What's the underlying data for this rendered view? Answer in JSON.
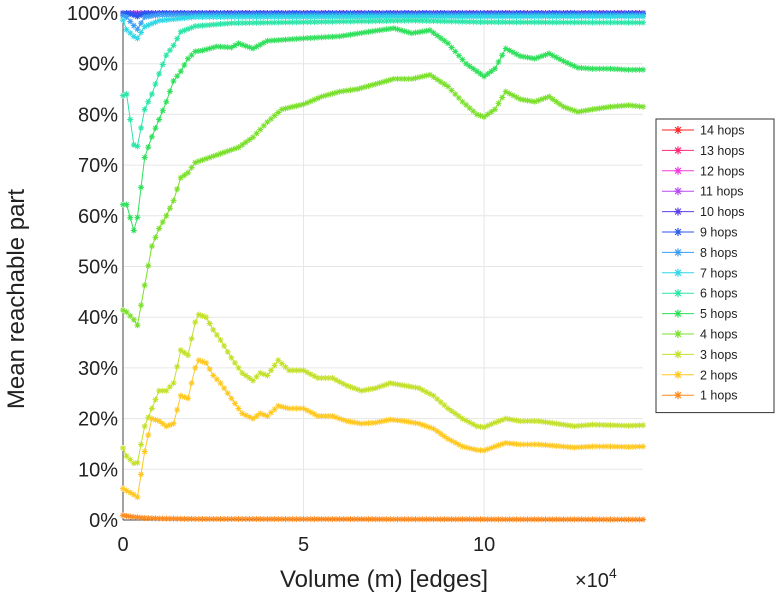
{
  "chart_data": {
    "type": "line",
    "title": "",
    "xlabel": "Volume (m) [edges]",
    "ylabel": "Mean reachable part",
    "x_multiplier_label": "×10",
    "x_multiplier_exponent": "4",
    "xlim": [
      0,
      144000
    ],
    "ylim": [
      0,
      100
    ],
    "x_ticks": [
      0,
      50000,
      100000
    ],
    "x_tick_labels": [
      "0",
      "5",
      "10"
    ],
    "y_ticks": [
      0,
      10,
      20,
      30,
      40,
      50,
      60,
      70,
      80,
      90,
      100
    ],
    "y_tick_labels": [
      "0%",
      "10%",
      "20%",
      "30%",
      "40%",
      "50%",
      "60%",
      "70%",
      "80%",
      "90%",
      "100%"
    ],
    "grid": true,
    "legend_position": "right",
    "marker": "asterisk",
    "series": [
      {
        "name": "14 hops",
        "color": "#ff2222",
        "points": [
          [
            0,
            100
          ],
          [
            1000,
            100
          ],
          [
            4000,
            100
          ],
          [
            10000,
            100
          ],
          [
            144000,
            100
          ]
        ]
      },
      {
        "name": "13 hops",
        "color": "#ff2a7a",
        "points": [
          [
            0,
            100
          ],
          [
            1000,
            100
          ],
          [
            4000,
            100
          ],
          [
            10000,
            100
          ],
          [
            144000,
            100
          ]
        ]
      },
      {
        "name": "12 hops",
        "color": "#f23ad9",
        "points": [
          [
            0,
            100
          ],
          [
            1000,
            100
          ],
          [
            4000,
            100
          ],
          [
            10000,
            100
          ],
          [
            144000,
            100
          ]
        ]
      },
      {
        "name": "11 hops",
        "color": "#b54cf2",
        "points": [
          [
            0,
            100
          ],
          [
            1000,
            100
          ],
          [
            4000,
            100
          ],
          [
            10000,
            100
          ],
          [
            144000,
            100
          ]
        ]
      },
      {
        "name": "10 hops",
        "color": "#5a40e8",
        "points": [
          [
            0,
            100
          ],
          [
            1000,
            100
          ],
          [
            4000,
            99.8
          ],
          [
            6000,
            100
          ],
          [
            144000,
            100
          ]
        ]
      },
      {
        "name": "9 hops",
        "color": "#2a56f0",
        "points": [
          [
            0,
            100
          ],
          [
            1000,
            100
          ],
          [
            4000,
            99.3
          ],
          [
            6000,
            99.9
          ],
          [
            10000,
            100
          ],
          [
            144000,
            99.9
          ]
        ]
      },
      {
        "name": "8 hops",
        "color": "#3a9ef5",
        "points": [
          [
            0,
            99.4
          ],
          [
            1000,
            99.2
          ],
          [
            3000,
            97.5
          ],
          [
            4000,
            96.8
          ],
          [
            6000,
            99.2
          ],
          [
            10000,
            99.6
          ],
          [
            144000,
            99.6
          ]
        ]
      },
      {
        "name": "7 hops",
        "color": "#2fd8e6",
        "points": [
          [
            0,
            98.6
          ],
          [
            1000,
            96.7
          ],
          [
            3000,
            95.4
          ],
          [
            4000,
            95
          ],
          [
            6000,
            97.3
          ],
          [
            10000,
            98.5
          ],
          [
            20000,
            99.2
          ],
          [
            144000,
            99.3
          ]
        ]
      },
      {
        "name": "6 hops",
        "color": "#2be6a8",
        "points": [
          [
            0,
            83.7
          ],
          [
            1000,
            84
          ],
          [
            3000,
            74
          ],
          [
            4000,
            73.7
          ],
          [
            6000,
            81
          ],
          [
            8000,
            84
          ],
          [
            10000,
            88
          ],
          [
            12000,
            91.7
          ],
          [
            14000,
            93.6
          ],
          [
            16000,
            96.3
          ],
          [
            20000,
            97.4
          ],
          [
            30000,
            98
          ],
          [
            60000,
            98.3
          ],
          [
            80000,
            98.5
          ],
          [
            100000,
            98.2
          ],
          [
            144000,
            98.1
          ]
        ]
      },
      {
        "name": "5 hops",
        "color": "#2fe05a",
        "points": [
          [
            0,
            62.2
          ],
          [
            1000,
            62.2
          ],
          [
            3000,
            57.1
          ],
          [
            4000,
            59.7
          ],
          [
            6000,
            71.5
          ],
          [
            8000,
            75.6
          ],
          [
            10000,
            79
          ],
          [
            12000,
            82.5
          ],
          [
            14000,
            86.6
          ],
          [
            16000,
            88.5
          ],
          [
            18000,
            91
          ],
          [
            20000,
            92.4
          ],
          [
            22000,
            92.6
          ],
          [
            26000,
            93.4
          ],
          [
            30000,
            93.2
          ],
          [
            32000,
            94
          ],
          [
            36000,
            93
          ],
          [
            40000,
            94.5
          ],
          [
            50000,
            95
          ],
          [
            60000,
            95.4
          ],
          [
            70000,
            96.5
          ],
          [
            75000,
            97
          ],
          [
            80000,
            96
          ],
          [
            85000,
            96.6
          ],
          [
            90000,
            94
          ],
          [
            95000,
            90
          ],
          [
            100000,
            87.5
          ],
          [
            103000,
            89
          ],
          [
            106000,
            93
          ],
          [
            110000,
            91.5
          ],
          [
            114000,
            91
          ],
          [
            118000,
            92
          ],
          [
            122000,
            90.5
          ],
          [
            126000,
            89.2
          ],
          [
            130000,
            89
          ],
          [
            135000,
            89
          ],
          [
            140000,
            88.8
          ],
          [
            144000,
            88.8
          ]
        ]
      },
      {
        "name": "4 hops",
        "color": "#7ae02b",
        "points": [
          [
            0,
            41.4
          ],
          [
            1000,
            41
          ],
          [
            3000,
            39.5
          ],
          [
            4000,
            38.4
          ],
          [
            6000,
            46.3
          ],
          [
            8000,
            54
          ],
          [
            10000,
            57.5
          ],
          [
            12000,
            60
          ],
          [
            14000,
            63
          ],
          [
            16000,
            67.5
          ],
          [
            18000,
            68.5
          ],
          [
            20000,
            70.5
          ],
          [
            24000,
            71.5
          ],
          [
            28000,
            72.5
          ],
          [
            32000,
            73.5
          ],
          [
            36000,
            75.5
          ],
          [
            40000,
            78.5
          ],
          [
            44000,
            81
          ],
          [
            50000,
            82
          ],
          [
            55000,
            83.5
          ],
          [
            60000,
            84.5
          ],
          [
            65000,
            85
          ],
          [
            70000,
            86
          ],
          [
            75000,
            87
          ],
          [
            80000,
            87
          ],
          [
            85000,
            87.8
          ],
          [
            90000,
            85.5
          ],
          [
            94000,
            82.5
          ],
          [
            98000,
            80
          ],
          [
            100000,
            79.5
          ],
          [
            103000,
            81
          ],
          [
            106000,
            84.5
          ],
          [
            110000,
            83
          ],
          [
            114000,
            82.5
          ],
          [
            118000,
            83.5
          ],
          [
            122000,
            81.5
          ],
          [
            126000,
            80.5
          ],
          [
            130000,
            81
          ],
          [
            135000,
            81.5
          ],
          [
            140000,
            81.8
          ],
          [
            144000,
            81.5
          ]
        ]
      },
      {
        "name": "3 hops",
        "color": "#c4e02b",
        "points": [
          [
            0,
            14.2
          ],
          [
            1000,
            12.6
          ],
          [
            3000,
            11.2
          ],
          [
            4000,
            11.3
          ],
          [
            6000,
            18.5
          ],
          [
            8000,
            22
          ],
          [
            10000,
            25.5
          ],
          [
            12000,
            25.5
          ],
          [
            14000,
            27
          ],
          [
            16000,
            33.5
          ],
          [
            18000,
            32.5
          ],
          [
            20000,
            39
          ],
          [
            21000,
            40.5
          ],
          [
            23000,
            40
          ],
          [
            25000,
            37.5
          ],
          [
            27000,
            35.5
          ],
          [
            30000,
            32
          ],
          [
            33000,
            29
          ],
          [
            36000,
            27.5
          ],
          [
            38000,
            29
          ],
          [
            40000,
            28.5
          ],
          [
            43000,
            31.5
          ],
          [
            46000,
            29.5
          ],
          [
            50000,
            29.5
          ],
          [
            54000,
            28
          ],
          [
            58000,
            28
          ],
          [
            62000,
            26.5
          ],
          [
            66000,
            25.5
          ],
          [
            70000,
            26
          ],
          [
            74000,
            27
          ],
          [
            78000,
            26.5
          ],
          [
            82000,
            26
          ],
          [
            86000,
            24.5
          ],
          [
            90000,
            22
          ],
          [
            94000,
            20
          ],
          [
            98000,
            18.5
          ],
          [
            100000,
            18.3
          ],
          [
            103000,
            19.2
          ],
          [
            106000,
            20
          ],
          [
            110000,
            19.5
          ],
          [
            115000,
            19.5
          ],
          [
            120000,
            19
          ],
          [
            125000,
            18.5
          ],
          [
            130000,
            18.8
          ],
          [
            135000,
            18.7
          ],
          [
            140000,
            18.6
          ],
          [
            144000,
            18.7
          ]
        ]
      },
      {
        "name": "2 hops",
        "color": "#ffc820",
        "points": [
          [
            0,
            6.2
          ],
          [
            1000,
            5.8
          ],
          [
            3000,
            5
          ],
          [
            4000,
            4.5
          ],
          [
            6000,
            13.5
          ],
          [
            8000,
            20
          ],
          [
            10000,
            19.5
          ],
          [
            12000,
            18.5
          ],
          [
            14000,
            19
          ],
          [
            16000,
            24.5
          ],
          [
            18000,
            24
          ],
          [
            20000,
            30
          ],
          [
            21000,
            31.5
          ],
          [
            23000,
            31
          ],
          [
            25000,
            28.5
          ],
          [
            27000,
            27
          ],
          [
            30000,
            24
          ],
          [
            33000,
            21
          ],
          [
            36000,
            20
          ],
          [
            38000,
            21
          ],
          [
            40000,
            20.5
          ],
          [
            43000,
            22.5
          ],
          [
            46000,
            22
          ],
          [
            50000,
            22
          ],
          [
            54000,
            20.5
          ],
          [
            58000,
            20.5
          ],
          [
            62000,
            19.5
          ],
          [
            66000,
            19
          ],
          [
            70000,
            19.2
          ],
          [
            74000,
            19.8
          ],
          [
            78000,
            19.5
          ],
          [
            82000,
            19
          ],
          [
            86000,
            18
          ],
          [
            90000,
            16
          ],
          [
            94000,
            14.5
          ],
          [
            98000,
            13.8
          ],
          [
            100000,
            13.7
          ],
          [
            103000,
            14.5
          ],
          [
            106000,
            15.2
          ],
          [
            110000,
            14.9
          ],
          [
            115000,
            14.9
          ],
          [
            120000,
            14.6
          ],
          [
            125000,
            14.3
          ],
          [
            130000,
            14.5
          ],
          [
            135000,
            14.5
          ],
          [
            140000,
            14.4
          ],
          [
            144000,
            14.5
          ]
        ]
      },
      {
        "name": "1 hops",
        "color": "#ff8a1e",
        "points": [
          [
            0,
            0.9
          ],
          [
            1000,
            0.8
          ],
          [
            3000,
            0.6
          ],
          [
            6000,
            0.4
          ],
          [
            10000,
            0.3
          ],
          [
            20000,
            0.2
          ],
          [
            144000,
            0.1
          ]
        ]
      }
    ]
  }
}
